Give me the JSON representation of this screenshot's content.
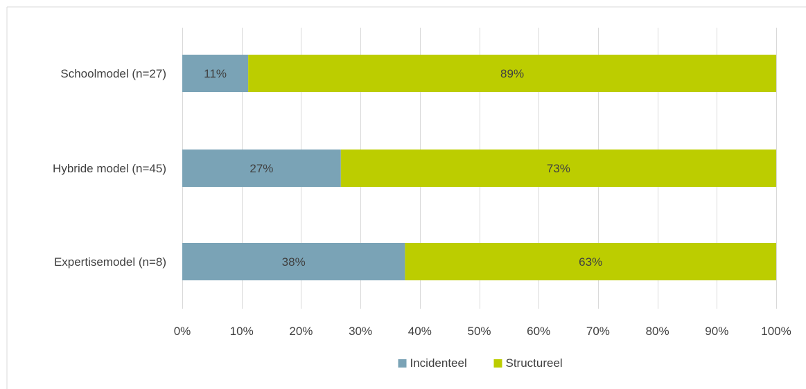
{
  "chart_data": {
    "type": "bar",
    "orientation": "horizontal",
    "stacked": true,
    "title": "",
    "xlabel": "",
    "ylabel": "",
    "xlim": [
      0,
      100
    ],
    "x_ticks": [
      "0%",
      "10%",
      "20%",
      "30%",
      "40%",
      "50%",
      "60%",
      "70%",
      "80%",
      "90%",
      "100%"
    ],
    "grid": "vertical",
    "legend_position": "bottom",
    "categories": [
      "Schoolmodel (n=27)",
      "Hybride model (n=45)",
      "Expertisemodel (n=8)"
    ],
    "series": [
      {
        "name": "Incidenteel",
        "color": "#7aa3b6",
        "values": [
          11.1,
          26.7,
          37.5
        ],
        "labels": [
          "11%",
          "27%",
          "38%"
        ]
      },
      {
        "name": "Structureel",
        "color": "#bccd00",
        "values": [
          88.9,
          73.3,
          62.5
        ],
        "labels": [
          "89%",
          "73%",
          "63%"
        ]
      }
    ],
    "colors": {
      "gridline": "#d9d9d9",
      "text": "#404040",
      "frame": "#d9d9d9"
    }
  }
}
